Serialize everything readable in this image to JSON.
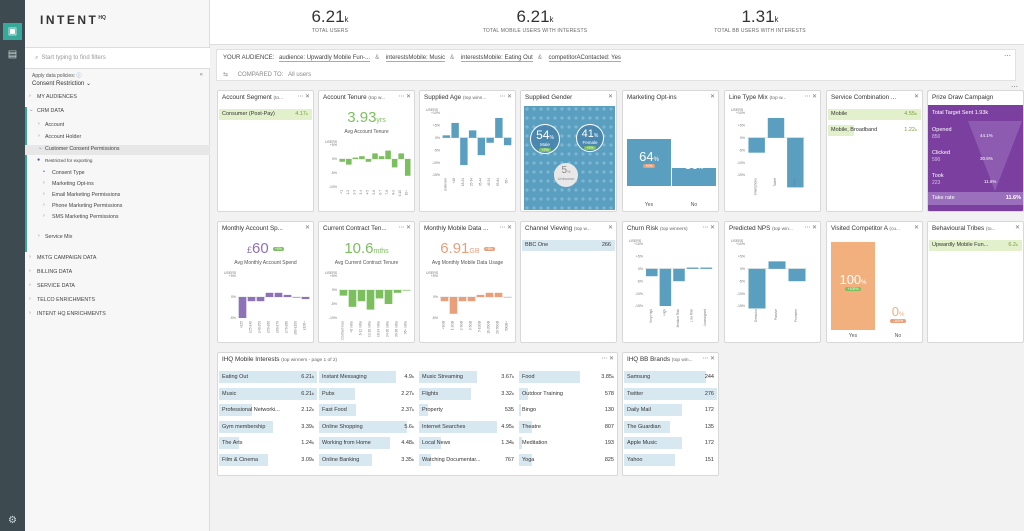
{
  "brand": {
    "name": "INTENT",
    "sup": "HQ"
  },
  "stats": [
    {
      "value": "6.21",
      "unit": "k",
      "label": "TOTAL USERS"
    },
    {
      "value": "6.21",
      "unit": "k",
      "label": "TOTAL MOBILE USERS WITH INTERESTS"
    },
    {
      "value": "1.31",
      "unit": "k",
      "label": "TOTAL BB USERS WITH INTERESTS"
    }
  ],
  "sidebar": {
    "search_placeholder": "Start typing to find filters",
    "policy_label": "Apply data policies:",
    "policy_value": "Consent Restriction",
    "items": [
      {
        "label": "MY AUDIENCES"
      },
      {
        "label": "CRM DATA"
      },
      {
        "label": "Account"
      },
      {
        "label": "Account Holder"
      },
      {
        "label": "Customer Consent Permissions"
      },
      {
        "label": "Restricted for exporting"
      },
      {
        "label": "Consent Type"
      },
      {
        "label": "Marketing Opt-ins"
      },
      {
        "label": "Email Marketing Permissions"
      },
      {
        "label": "Phone Marketing Permissions"
      },
      {
        "label": "SMS Marketing Permissions"
      },
      {
        "label": "Service Mix"
      },
      {
        "label": "MKTG CAMPAIGN DATA"
      },
      {
        "label": "BILLING DATA"
      },
      {
        "label": "SERVICE DATA"
      },
      {
        "label": "TELCO ENRICHMENTS"
      },
      {
        "label": "INTENT HQ ENRICHMENTS"
      }
    ]
  },
  "audience": {
    "label": "YOUR AUDIENCE:",
    "chips": [
      "audience: Upwardly Mobile Fun-...",
      "interestsMobile: Music",
      "interestsMobile: Eating Out",
      "competitorAContacted: Yes"
    ],
    "compared_label": "COMPARED TO:",
    "compared_value": "All users"
  },
  "cards": {
    "account_segment": {
      "title": "Account Segment",
      "sub": "(to...",
      "row": "Consumer (Post-Pay)",
      "value": "4.17",
      "unit": "k"
    },
    "account_tenure": {
      "title": "Account Tenure",
      "sub": "(top w...",
      "big": "3.93",
      "unit": "yrs",
      "label": "Avg Account Tenure"
    },
    "supplied_age": {
      "title": "Supplied Age",
      "sub": "(top winn..."
    },
    "supplied_gender": {
      "title": "Supplied Gender",
      "male_pct": "54",
      "male": "Male",
      "male_badge": "+2%",
      "female_pct": "41",
      "female": "Female",
      "female_badge": "+2%",
      "unknown_pct": "5",
      "unknown": "Unknown"
    },
    "marketing_optins": {
      "title": "Marketing Opt-ins",
      "yes_pct": "64",
      "yes_badge": "+0%",
      "no_pct": "36",
      "no_badge": "+0%",
      "yes": "Yes",
      "no": "No"
    },
    "line_type_mix": {
      "title": "Line Type Mix",
      "sub": "(top w..."
    },
    "service_combination": {
      "title": "Service Combination ...",
      "rows": [
        {
          "k": "Mobile",
          "v": "4.55",
          "unit": "k"
        },
        {
          "k": "Mobile, Broadband",
          "v": "1.22",
          "unit": "k"
        }
      ]
    },
    "prize_draw": {
      "title": "Prize Draw Campaign",
      "target_label": "Total Target Sent",
      "target_val": "1.93k",
      "opened": "Opened",
      "opened_val": "850",
      "opened_pct": "44.1%",
      "clicked": "Clicked",
      "clicked_val": "590",
      "clicked_pct": "30.6%",
      "took": "Took",
      "took_val": "223",
      "took_pct": "11.6%",
      "rate_label": "Take rate",
      "rate_val": "11.6%"
    },
    "monthly_spend": {
      "title": "Monthly Account Sp...",
      "big": "60",
      "currency": "£",
      "badge": "+5%",
      "label": "Avg Monthly Account Spend"
    },
    "contract_tenure": {
      "title": "Current Contract Ten...",
      "big": "10.6",
      "unit": "mths",
      "label": "Avg Current Contract Tenure"
    },
    "mobile_data": {
      "title": "Monthly Mobile Data ...",
      "big": "6.91",
      "unit": "GB",
      "badge": "+8%",
      "label": "Avg Monthly Mobile Data Usage"
    },
    "channel_viewing": {
      "title": "Channel Viewing",
      "sub": "(top w...",
      "row": "BBC One",
      "value": "266"
    },
    "churn_risk": {
      "title": "Churn Risk",
      "sub": "(top winners)"
    },
    "predicted_nps": {
      "title": "Predicted NPS",
      "sub": "(top win..."
    },
    "visited_competitor": {
      "title": "Visited Competitor A",
      "sub": "(cu...",
      "yes_pct": "100",
      "yes_badge": "+100%",
      "no_pct": "0",
      "no_badge": "-100%",
      "yes": "Yes",
      "no": "No"
    },
    "behavioural_tribes": {
      "title": "Behavioural Tribes",
      "sub": "(to...",
      "row": "Upwardly Mobile Fun...",
      "value": "6.2",
      "unit": "k"
    },
    "ihq_mobile": {
      "title": "IHQ Mobile Interests",
      "sub": "(top winners - page 1 of 2)"
    },
    "ihq_bb": {
      "title": "IHQ BB Brands",
      "sub": "(top win..."
    }
  },
  "chart_data": [
    {
      "type": "bar",
      "title": "Account Tenure",
      "ylabel": "USERS",
      "ticks": [
        "+5%",
        "0%",
        "-5%",
        "-10%"
      ],
      "categories": [
        "<1",
        "1-2",
        "2-3",
        "3-4",
        "4-5",
        "5-6",
        "6-7",
        "7-8",
        "8-9",
        "9-10",
        "10+"
      ],
      "values": [
        -1,
        -2,
        0.5,
        1,
        -1,
        2,
        1,
        3,
        -3,
        2,
        -6
      ]
    },
    {
      "type": "bar",
      "title": "Supplied Age",
      "ylabel": "USERS",
      "ticks": [
        "+10%",
        "+5%",
        "0%",
        "-5%",
        "-10%",
        "-15%"
      ],
      "categories": [
        "Unknown",
        "<18",
        "18-24",
        "25-34",
        "35-44",
        "45-54",
        "55-64",
        "65+"
      ],
      "values": [
        1,
        6,
        -11,
        3,
        -7,
        -2,
        8,
        -3
      ]
    },
    {
      "type": "bar",
      "title": "Line Type Mix",
      "ylabel": "USERS",
      "ticks": [
        "+10%",
        "+5%",
        "0%",
        "-5%",
        "-10%",
        "-15%"
      ],
      "categories": [
        "Smartphone",
        "Tablet",
        "Voice"
      ],
      "values": [
        -6,
        8,
        -20
      ]
    },
    {
      "type": "bar",
      "title": "Monthly Account Spend",
      "ylabel": "USERS",
      "ticks": [
        "+5%",
        "0%",
        "-5%"
      ],
      "categories": [
        "<£25",
        "£25-£40",
        "£40-£50",
        "£50-£60",
        "£60-£70",
        "£70-£80",
        "£80-£100",
        "£100+"
      ],
      "values": [
        -5,
        -1,
        -1,
        1,
        1,
        0.5,
        0,
        -0.5
      ]
    },
    {
      "type": "bar",
      "title": "Current Contract Tenure",
      "ylabel": "USERS",
      "ticks": [
        "+5%",
        "0%",
        "-5%",
        "-10%"
      ],
      "categories": [
        "Contract-less",
        "<6 mths",
        "6-12 mths",
        "12-18 mths",
        "18-24 mths",
        "24-30 mths",
        "30-36 mths",
        "36+ mths"
      ],
      "values": [
        -2,
        -6,
        -4,
        -7,
        -3,
        -5,
        -1,
        0
      ]
    },
    {
      "type": "bar",
      "title": "Monthly Mobile Data",
      "ylabel": "USERS",
      "ticks": [
        "+5%",
        "0%",
        "-5%"
      ],
      "categories": [
        "<1GB",
        "1-2GB",
        "2-3GB",
        "3-5GB",
        "5-10GB",
        "10-20GB",
        "20-50GB",
        "50GB+"
      ],
      "values": [
        -1,
        -4,
        -1,
        -1,
        0.5,
        1,
        1,
        0
      ]
    },
    {
      "type": "bar",
      "title": "Churn Risk",
      "ylabel": "USERS",
      "ticks": [
        "+10%",
        "+5%",
        "0%",
        "-5%",
        "-10%",
        "-15%"
      ],
      "categories": [
        "Very High",
        "High",
        "Medium Risk",
        "Low Risk",
        "Unassigned"
      ],
      "values": [
        -3,
        -15,
        -5,
        0.5,
        0.5
      ]
    },
    {
      "type": "bar",
      "title": "Predicted NPS",
      "ylabel": "USERS",
      "ticks": [
        "+10%",
        "+5%",
        "0%",
        "-5%",
        "-10%",
        "-15%"
      ],
      "categories": [
        "Detractor",
        "Passive",
        "Promoter"
      ],
      "values": [
        -16,
        3,
        -5
      ]
    }
  ],
  "ihq_mobile": [
    [
      {
        "k": "Eating Out",
        "v": "6.21",
        "unit": "k",
        "fill": 1.0
      },
      {
        "k": "Music",
        "v": "6.21",
        "unit": "k",
        "fill": 1.0
      },
      {
        "k": "Professional Networki...",
        "v": "2.12",
        "unit": "k",
        "fill": 0.34
      },
      {
        "k": "Gym membership",
        "v": "3.39",
        "unit": "k",
        "fill": 0.55
      },
      {
        "k": "The Arts",
        "v": "1.24",
        "unit": "k",
        "fill": 0.2
      },
      {
        "k": "Film & Cinema",
        "v": "3.09",
        "unit": "k",
        "fill": 0.5
      }
    ],
    [
      {
        "k": "Instant Messaging",
        "v": "4.9",
        "unit": "k",
        "fill": 0.79
      },
      {
        "k": "Pubs",
        "v": "2.27",
        "unit": "k",
        "fill": 0.37
      },
      {
        "k": "Fast Food",
        "v": "2.37",
        "unit": "k",
        "fill": 0.38
      },
      {
        "k": "Online Shopping",
        "v": "5.6",
        "unit": "k",
        "fill": 0.9
      },
      {
        "k": "Working from Home",
        "v": "4.48",
        "unit": "k",
        "fill": 0.72
      },
      {
        "k": "Online Banking",
        "v": "3.35",
        "unit": "k",
        "fill": 0.54
      }
    ],
    [
      {
        "k": "Music Streaming",
        "v": "3.67",
        "unit": "k",
        "fill": 0.59
      },
      {
        "k": "Flights",
        "v": "3.32",
        "unit": "k",
        "fill": 0.53
      },
      {
        "k": "Property",
        "v": "535",
        "unit": "",
        "fill": 0.09
      },
      {
        "k": "Internet Searches",
        "v": "4.95",
        "unit": "k",
        "fill": 0.8
      },
      {
        "k": "Local News",
        "v": "1.34",
        "unit": "k",
        "fill": 0.22
      },
      {
        "k": "Watching Documentar...",
        "v": "767",
        "unit": "",
        "fill": 0.12
      }
    ],
    [
      {
        "k": "Food",
        "v": "3.85",
        "unit": "k",
        "fill": 0.62
      },
      {
        "k": "Outdoor Training",
        "v": "578",
        "unit": "",
        "fill": 0.09
      },
      {
        "k": "Bingo",
        "v": "130",
        "unit": "",
        "fill": 0.02
      },
      {
        "k": "Theatre",
        "v": "807",
        "unit": "",
        "fill": 0.13
      },
      {
        "k": "Meditation",
        "v": "193",
        "unit": "",
        "fill": 0.03
      },
      {
        "k": "Yoga",
        "v": "825",
        "unit": "",
        "fill": 0.13
      }
    ]
  ],
  "ihq_bb": [
    {
      "k": "Samsung",
      "v": "244",
      "fill": 0.88
    },
    {
      "k": "Twitter",
      "v": "276",
      "fill": 1.0
    },
    {
      "k": "Daily Mail",
      "v": "172",
      "fill": 0.62
    },
    {
      "k": "The Guardian",
      "v": "135",
      "fill": 0.49
    },
    {
      "k": "Apple Music",
      "v": "172",
      "fill": 0.62
    },
    {
      "k": "Yahoo",
      "v": "151",
      "fill": 0.55
    }
  ],
  "colors": {
    "accent": "#37a99a",
    "bar_blue": "#5a9fc0",
    "bar_green": "#7cbf5e",
    "bar_purple": "#8e72b8",
    "bar_orange": "#e7a07b",
    "purple": "#7b3fa0"
  }
}
